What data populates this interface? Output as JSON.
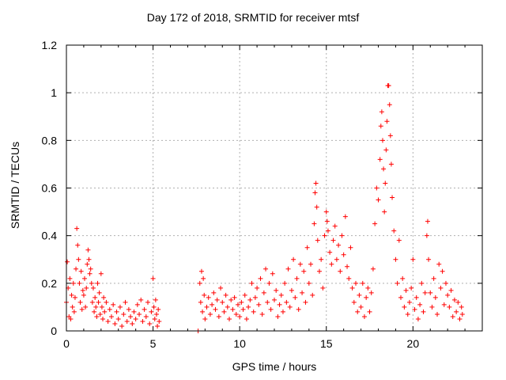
{
  "chart_data": {
    "type": "scatter",
    "title": "Day 172 of 2018, SRMTID for receiver mtsf",
    "xlabel": "GPS time / hours",
    "ylabel": "SRMTID / TECUs",
    "xlim": [
      0,
      24
    ],
    "ylim": [
      0,
      1.2
    ],
    "xticks": [
      0,
      5,
      10,
      15,
      20
    ],
    "xtick_labels": [
      "0",
      "5",
      "10",
      "15",
      "20"
    ],
    "yticks": [
      0,
      0.2,
      0.4,
      0.6,
      0.8,
      1.0,
      1.2
    ],
    "ytick_labels": [
      "0",
      "0.2",
      "0.4",
      "0.6",
      "0.8",
      "1",
      "1.2"
    ],
    "grid": true,
    "marker": "+",
    "color": "#ff0000",
    "series": [
      {
        "name": "SRMTID",
        "points": [
          [
            0.0,
            0.12
          ],
          [
            0.05,
            0.29
          ],
          [
            0.1,
            0.18
          ],
          [
            0.15,
            0.06
          ],
          [
            0.2,
            0.22
          ],
          [
            0.25,
            0.05
          ],
          [
            0.3,
            0.15
          ],
          [
            0.35,
            0.1
          ],
          [
            0.4,
            0.2
          ],
          [
            0.45,
            0.08
          ],
          [
            0.5,
            0.14
          ],
          [
            0.55,
            0.26
          ],
          [
            0.6,
            0.43
          ],
          [
            0.65,
            0.36
          ],
          [
            0.7,
            0.3
          ],
          [
            0.75,
            0.2
          ],
          [
            0.8,
            0.12
          ],
          [
            0.85,
            0.25
          ],
          [
            0.9,
            0.09
          ],
          [
            0.95,
            0.17
          ],
          [
            1.0,
            0.15
          ],
          [
            1.05,
            0.22
          ],
          [
            1.1,
            0.1
          ],
          [
            1.15,
            0.18
          ],
          [
            1.2,
            0.28
          ],
          [
            1.25,
            0.34
          ],
          [
            1.3,
            0.3
          ],
          [
            1.35,
            0.24
          ],
          [
            1.4,
            0.26
          ],
          [
            1.45,
            0.2
          ],
          [
            1.5,
            0.12
          ],
          [
            1.55,
            0.18
          ],
          [
            1.6,
            0.08
          ],
          [
            1.65,
            0.14
          ],
          [
            1.7,
            0.1
          ],
          [
            1.75,
            0.06
          ],
          [
            1.8,
            0.2
          ],
          [
            1.85,
            0.12
          ],
          [
            1.9,
            0.16
          ],
          [
            1.95,
            0.07
          ],
          [
            2.0,
            0.24
          ],
          [
            2.05,
            0.1
          ],
          [
            2.1,
            0.05
          ],
          [
            2.15,
            0.14
          ],
          [
            2.2,
            0.08
          ],
          [
            2.3,
            0.12
          ],
          [
            2.4,
            0.04
          ],
          [
            2.5,
            0.09
          ],
          [
            2.6,
            0.06
          ],
          [
            2.7,
            0.11
          ],
          [
            2.8,
            0.03
          ],
          [
            2.9,
            0.08
          ],
          [
            3.0,
            0.05
          ],
          [
            3.1,
            0.1
          ],
          [
            3.2,
            0.02
          ],
          [
            3.3,
            0.07
          ],
          [
            3.4,
            0.12
          ],
          [
            3.5,
            0.04
          ],
          [
            3.6,
            0.09
          ],
          [
            3.7,
            0.06
          ],
          [
            3.8,
            0.03
          ],
          [
            3.9,
            0.08
          ],
          [
            4.0,
            0.05
          ],
          [
            4.1,
            0.11
          ],
          [
            4.2,
            0.07
          ],
          [
            4.3,
            0.13
          ],
          [
            4.4,
            0.04
          ],
          [
            4.5,
            0.09
          ],
          [
            4.6,
            0.06
          ],
          [
            4.7,
            0.12
          ],
          [
            4.8,
            0.03
          ],
          [
            4.9,
            0.08
          ],
          [
            5.0,
            0.22
          ],
          [
            5.05,
            0.1
          ],
          [
            5.1,
            0.05
          ],
          [
            5.15,
            0.13
          ],
          [
            5.2,
            0.07
          ],
          [
            5.25,
            0.02
          ],
          [
            5.3,
            0.09
          ],
          [
            5.35,
            0.04
          ],
          [
            7.6,
            0.0
          ],
          [
            7.7,
            0.2
          ],
          [
            7.75,
            0.12
          ],
          [
            7.8,
            0.25
          ],
          [
            7.85,
            0.08
          ],
          [
            7.9,
            0.22
          ],
          [
            7.95,
            0.15
          ],
          [
            8.0,
            0.05
          ],
          [
            8.1,
            0.1
          ],
          [
            8.2,
            0.14
          ],
          [
            8.3,
            0.07
          ],
          [
            8.4,
            0.11
          ],
          [
            8.5,
            0.16
          ],
          [
            8.6,
            0.09
          ],
          [
            8.7,
            0.13
          ],
          [
            8.8,
            0.06
          ],
          [
            8.9,
            0.18
          ],
          [
            9.0,
            0.12
          ],
          [
            9.1,
            0.08
          ],
          [
            9.2,
            0.15
          ],
          [
            9.3,
            0.1
          ],
          [
            9.4,
            0.05
          ],
          [
            9.5,
            0.13
          ],
          [
            9.6,
            0.09
          ],
          [
            9.7,
            0.14
          ],
          [
            9.8,
            0.07
          ],
          [
            9.9,
            0.11
          ],
          [
            10.0,
            0.06
          ],
          [
            10.1,
            0.12
          ],
          [
            10.2,
            0.09
          ],
          [
            10.3,
            0.15
          ],
          [
            10.4,
            0.05
          ],
          [
            10.5,
            0.1
          ],
          [
            10.6,
            0.13
          ],
          [
            10.7,
            0.2
          ],
          [
            10.8,
            0.08
          ],
          [
            10.9,
            0.14
          ],
          [
            11.0,
            0.18
          ],
          [
            11.1,
            0.11
          ],
          [
            11.2,
            0.22
          ],
          [
            11.3,
            0.07
          ],
          [
            11.4,
            0.16
          ],
          [
            11.5,
            0.26
          ],
          [
            11.6,
            0.12
          ],
          [
            11.7,
            0.2
          ],
          [
            11.8,
            0.09
          ],
          [
            11.9,
            0.24
          ],
          [
            12.0,
            0.13
          ],
          [
            12.1,
            0.17
          ],
          [
            12.2,
            0.06
          ],
          [
            12.3,
            0.11
          ],
          [
            12.4,
            0.15
          ],
          [
            12.5,
            0.08
          ],
          [
            12.6,
            0.2
          ],
          [
            12.7,
            0.12
          ],
          [
            12.8,
            0.26
          ],
          [
            12.9,
            0.1
          ],
          [
            13.0,
            0.17
          ],
          [
            13.1,
            0.3
          ],
          [
            13.2,
            0.14
          ],
          [
            13.3,
            0.22
          ],
          [
            13.4,
            0.09
          ],
          [
            13.5,
            0.28
          ],
          [
            13.6,
            0.16
          ],
          [
            13.7,
            0.25
          ],
          [
            13.8,
            0.12
          ],
          [
            13.9,
            0.35
          ],
          [
            14.0,
            0.2
          ],
          [
            14.1,
            0.28
          ],
          [
            14.2,
            0.15
          ],
          [
            14.3,
            0.45
          ],
          [
            14.35,
            0.58
          ],
          [
            14.4,
            0.62
          ],
          [
            14.45,
            0.52
          ],
          [
            14.5,
            0.38
          ],
          [
            14.6,
            0.25
          ],
          [
            14.7,
            0.3
          ],
          [
            14.8,
            0.18
          ],
          [
            14.9,
            0.4
          ],
          [
            15.0,
            0.5
          ],
          [
            15.05,
            0.46
          ],
          [
            15.1,
            0.42
          ],
          [
            15.2,
            0.33
          ],
          [
            15.3,
            0.28
          ],
          [
            15.4,
            0.38
          ],
          [
            15.5,
            0.44
          ],
          [
            15.6,
            0.3
          ],
          [
            15.7,
            0.36
          ],
          [
            15.8,
            0.25
          ],
          [
            15.9,
            0.4
          ],
          [
            16.0,
            0.32
          ],
          [
            16.1,
            0.48
          ],
          [
            16.2,
            0.27
          ],
          [
            16.3,
            0.22
          ],
          [
            16.4,
            0.35
          ],
          [
            16.5,
            0.18
          ],
          [
            16.6,
            0.12
          ],
          [
            16.7,
            0.2
          ],
          [
            16.8,
            0.08
          ],
          [
            16.9,
            0.15
          ],
          [
            17.0,
            0.1
          ],
          [
            17.1,
            0.2
          ],
          [
            17.2,
            0.06
          ],
          [
            17.3,
            0.14
          ],
          [
            17.4,
            0.18
          ],
          [
            17.5,
            0.08
          ],
          [
            17.6,
            0.16
          ],
          [
            17.7,
            0.26
          ],
          [
            17.8,
            0.45
          ],
          [
            17.9,
            0.6
          ],
          [
            18.0,
            0.55
          ],
          [
            18.1,
            0.72
          ],
          [
            18.15,
            0.86
          ],
          [
            18.2,
            0.92
          ],
          [
            18.25,
            0.8
          ],
          [
            18.3,
            0.68
          ],
          [
            18.35,
            0.5
          ],
          [
            18.4,
            0.62
          ],
          [
            18.45,
            0.76
          ],
          [
            18.5,
            0.88
          ],
          [
            18.55,
            1.03
          ],
          [
            18.6,
            1.03
          ],
          [
            18.65,
            0.95
          ],
          [
            18.7,
            0.82
          ],
          [
            18.75,
            0.7
          ],
          [
            18.8,
            0.56
          ],
          [
            18.9,
            0.42
          ],
          [
            19.0,
            0.3
          ],
          [
            19.1,
            0.2
          ],
          [
            19.2,
            0.38
          ],
          [
            19.3,
            0.14
          ],
          [
            19.4,
            0.22
          ],
          [
            19.5,
            0.1
          ],
          [
            19.6,
            0.17
          ],
          [
            19.7,
            0.07
          ],
          [
            19.8,
            0.12
          ],
          [
            19.9,
            0.18
          ],
          [
            20.0,
            0.3
          ],
          [
            20.1,
            0.09
          ],
          [
            20.2,
            0.14
          ],
          [
            20.3,
            0.05
          ],
          [
            20.4,
            0.11
          ],
          [
            20.5,
            0.2
          ],
          [
            20.6,
            0.08
          ],
          [
            20.7,
            0.16
          ],
          [
            20.8,
            0.4
          ],
          [
            20.85,
            0.46
          ],
          [
            20.9,
            0.3
          ],
          [
            21.0,
            0.16
          ],
          [
            21.1,
            0.1
          ],
          [
            21.2,
            0.22
          ],
          [
            21.3,
            0.14
          ],
          [
            21.4,
            0.07
          ],
          [
            21.5,
            0.28
          ],
          [
            21.6,
            0.18
          ],
          [
            21.7,
            0.25
          ],
          [
            21.8,
            0.11
          ],
          [
            21.9,
            0.2
          ],
          [
            22.0,
            0.15
          ],
          [
            22.1,
            0.1
          ],
          [
            22.2,
            0.17
          ],
          [
            22.3,
            0.06
          ],
          [
            22.4,
            0.13
          ],
          [
            22.5,
            0.08
          ],
          [
            22.6,
            0.12
          ],
          [
            22.7,
            0.05
          ],
          [
            22.8,
            0.1
          ],
          [
            22.85,
            0.07
          ]
        ]
      }
    ]
  }
}
